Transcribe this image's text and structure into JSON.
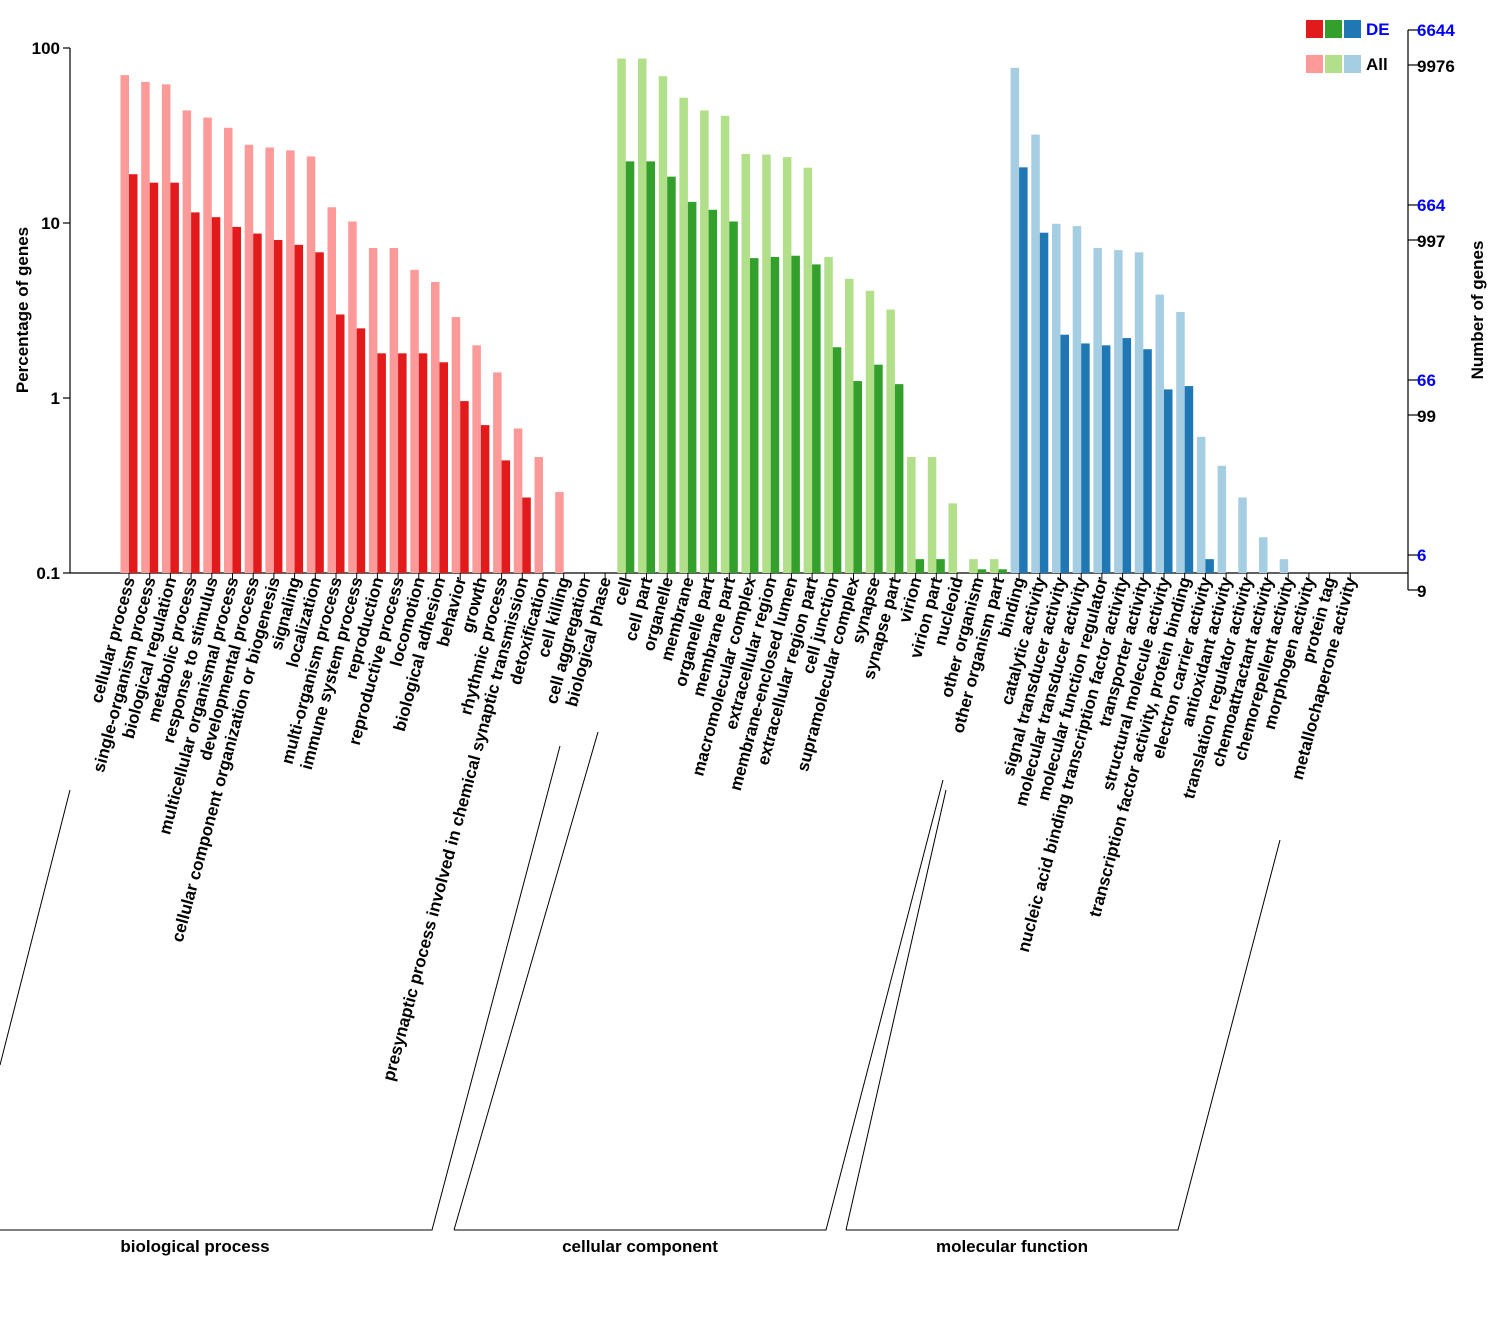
{
  "chart_data": {
    "type": "bar",
    "ylabel_left": "Percentage of genes",
    "ylabel_right": "Number of genes",
    "yscale": "log",
    "ylim": [
      0.1,
      100
    ],
    "left_ticks": [
      "100",
      "10",
      "1",
      "0.1"
    ],
    "right_ticks_de": [
      "6644",
      "664",
      "66",
      "6"
    ],
    "right_ticks_all": [
      "9976",
      "997",
      "99",
      "9"
    ],
    "legend": {
      "de_label": "DE",
      "all_label": "All",
      "placement": "top-right"
    },
    "colors": {
      "bp_de": "#e31a1c",
      "bp_all": "#fb9a99",
      "cc_de": "#33a02c",
      "cc_all": "#b2df8a",
      "mf_de": "#1f78b4",
      "mf_all": "#a6cee3",
      "de_tick_text": "#0000ff"
    },
    "groups": [
      {
        "name": "biological process",
        "de_color": "#e31a1c",
        "all_color": "#fb9a99",
        "categories": [
          {
            "label": "cellular process",
            "all": 70,
            "de": 19
          },
          {
            "label": "single-organism process",
            "all": 64,
            "de": 17
          },
          {
            "label": "biological regulation",
            "all": 62,
            "de": 17
          },
          {
            "label": "metabolic process",
            "all": 44,
            "de": 11.5
          },
          {
            "label": "response to stimulus",
            "all": 40,
            "de": 10.8
          },
          {
            "label": "multicellular organismal process",
            "all": 35,
            "de": 9.5
          },
          {
            "label": "developmental process",
            "all": 28,
            "de": 8.7
          },
          {
            "label": "cellular component organization or biogenesis",
            "all": 27,
            "de": 8.0
          },
          {
            "label": "signaling",
            "all": 26,
            "de": 7.5
          },
          {
            "label": "localization",
            "all": 24,
            "de": 6.8
          },
          {
            "label": "multi-organism process",
            "all": 12.3,
            "de": 3.0
          },
          {
            "label": "immune system process",
            "all": 10.2,
            "de": 2.5
          },
          {
            "label": "reproduction",
            "all": 7.2,
            "de": 1.8
          },
          {
            "label": "reproductive process",
            "all": 7.2,
            "de": 1.8
          },
          {
            "label": "locomotion",
            "all": 5.4,
            "de": 1.8
          },
          {
            "label": "biological adhesion",
            "all": 4.6,
            "de": 1.6
          },
          {
            "label": "behavior",
            "all": 2.9,
            "de": 0.96
          },
          {
            "label": "growth",
            "all": 2.0,
            "de": 0.7
          },
          {
            "label": "rhythmic process",
            "all": 1.4,
            "de": 0.44
          },
          {
            "label": "presynaptic process involved in chemical synaptic transmission",
            "all": 0.67,
            "de": 0.27
          },
          {
            "label": "detoxification",
            "all": 0.46,
            "de": null
          },
          {
            "label": "cell killing",
            "all": 0.29,
            "de": null
          },
          {
            "label": "cell aggregation",
            "all": null,
            "de": null
          },
          {
            "label": "biological phase",
            "all": null,
            "de": null
          }
        ]
      },
      {
        "name": "cellular component",
        "de_color": "#33a02c",
        "all_color": "#b2df8a",
        "categories": [
          {
            "label": "cell",
            "all": 87,
            "de": 22.5
          },
          {
            "label": "cell part",
            "all": 87,
            "de": 22.5
          },
          {
            "label": "organelle",
            "all": 69,
            "de": 18.4
          },
          {
            "label": "membrane",
            "all": 52,
            "de": 13.2
          },
          {
            "label": "organelle part",
            "all": 44,
            "de": 11.9
          },
          {
            "label": "membrane part",
            "all": 41,
            "de": 10.2
          },
          {
            "label": "macromolecular complex",
            "all": 24.8,
            "de": 6.3
          },
          {
            "label": "extracellular region",
            "all": 24.6,
            "de": 6.4
          },
          {
            "label": "membrane-enclosed lumen",
            "all": 23.8,
            "de": 6.5
          },
          {
            "label": "extracellular region part",
            "all": 20.7,
            "de": 5.8
          },
          {
            "label": "cell junction",
            "all": 6.4,
            "de": 1.95
          },
          {
            "label": "supramolecular complex",
            "all": 4.8,
            "de": 1.25
          },
          {
            "label": "synapse",
            "all": 4.1,
            "de": 1.55
          },
          {
            "label": "synapse part",
            "all": 3.2,
            "de": 1.2
          },
          {
            "label": "virion",
            "all": 0.46,
            "de": 0.12
          },
          {
            "label": "virion part",
            "all": 0.46,
            "de": 0.12
          },
          {
            "label": "nucleoid",
            "all": 0.25,
            "de": null
          },
          {
            "label": "other organism",
            "all": 0.12,
            "de": 0.105
          },
          {
            "label": "other organism part",
            "all": 0.12,
            "de": 0.105
          }
        ]
      },
      {
        "name": "molecular function",
        "de_color": "#1f78b4",
        "all_color": "#a6cee3",
        "categories": [
          {
            "label": "binding",
            "all": 77,
            "de": 20.8
          },
          {
            "label": "catalytic activity",
            "all": 32,
            "de": 8.8
          },
          {
            "label": "signal transducer activity",
            "all": 9.9,
            "de": 2.3
          },
          {
            "label": "molecular transducer activity",
            "all": 9.6,
            "de": 2.05
          },
          {
            "label": "molecular function regulator",
            "all": 7.2,
            "de": 2.0
          },
          {
            "label": "nucleic acid binding transcription factor activity",
            "all": 7.0,
            "de": 2.2
          },
          {
            "label": "transporter activity",
            "all": 6.8,
            "de": 1.9
          },
          {
            "label": "structural molecule activity",
            "all": 3.9,
            "de": 1.12
          },
          {
            "label": "transcription factor activity, protein binding",
            "all": 3.1,
            "de": 1.17
          },
          {
            "label": "electron carrier activity",
            "all": 0.6,
            "de": 0.12
          },
          {
            "label": "antioxidant activity",
            "all": 0.41,
            "de": null
          },
          {
            "label": "translation regulator activity",
            "all": 0.27,
            "de": null
          },
          {
            "label": "chemoattractant activity",
            "all": 0.16,
            "de": null
          },
          {
            "label": "chemorepellent activity",
            "all": 0.12,
            "de": null
          },
          {
            "label": "morphogen activity",
            "all": null,
            "de": null
          },
          {
            "label": "protein tag",
            "all": null,
            "de": null
          },
          {
            "label": "metallochaperone activity",
            "all": null,
            "de": null
          }
        ]
      }
    ]
  }
}
